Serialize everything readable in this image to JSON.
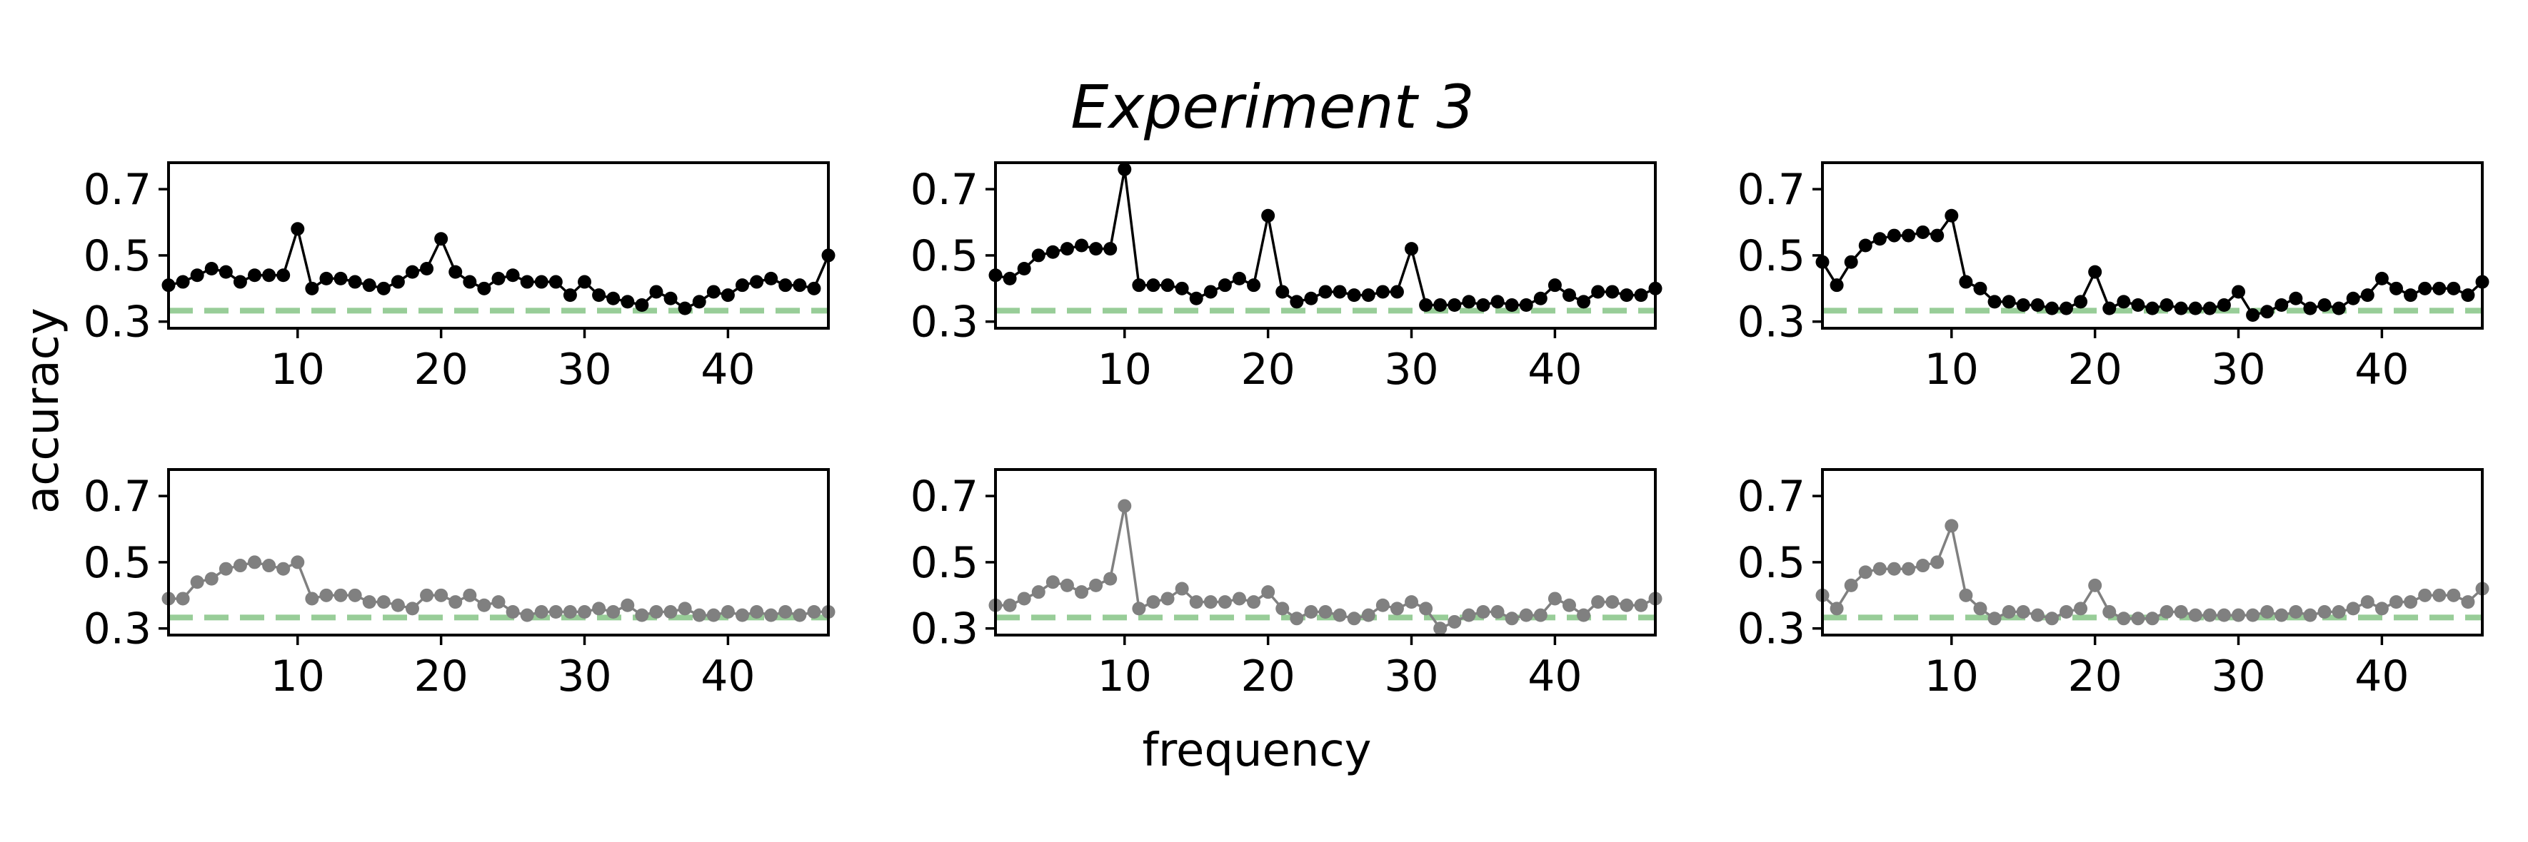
{
  "figure": {
    "title": "Experiment 3",
    "ylabel": "accuracy",
    "xlabel": "frequency"
  },
  "chart_data": [
    {
      "type": "line",
      "panel": "top-left",
      "color": "#000000",
      "baseline": 0.333,
      "baseline_color": "#98cd98",
      "xlim": [
        1,
        47
      ],
      "ylim": [
        0.28,
        0.78
      ],
      "xticks": [
        10,
        20,
        30,
        40
      ],
      "yticks": [
        0.3,
        0.5,
        0.7
      ],
      "x": [
        1,
        2,
        3,
        4,
        5,
        6,
        7,
        8,
        9,
        10,
        11,
        12,
        13,
        14,
        15,
        16,
        17,
        18,
        19,
        20,
        21,
        22,
        23,
        24,
        25,
        26,
        27,
        28,
        29,
        30,
        31,
        32,
        33,
        34,
        35,
        36,
        37,
        38,
        39,
        40,
        41,
        42,
        43,
        44,
        45,
        46,
        47
      ],
      "values": [
        0.41,
        0.42,
        0.44,
        0.46,
        0.45,
        0.42,
        0.44,
        0.44,
        0.44,
        0.58,
        0.4,
        0.43,
        0.43,
        0.42,
        0.41,
        0.4,
        0.42,
        0.45,
        0.46,
        0.55,
        0.45,
        0.42,
        0.4,
        0.43,
        0.44,
        0.42,
        0.42,
        0.42,
        0.38,
        0.42,
        0.38,
        0.37,
        0.36,
        0.35,
        0.39,
        0.37,
        0.34,
        0.36,
        0.39,
        0.38,
        0.41,
        0.42,
        0.43,
        0.41,
        0.41,
        0.4,
        0.5
      ]
    },
    {
      "type": "line",
      "panel": "top-middle",
      "color": "#000000",
      "baseline": 0.333,
      "baseline_color": "#98cd98",
      "xlim": [
        1,
        47
      ],
      "ylim": [
        0.28,
        0.78
      ],
      "xticks": [
        10,
        20,
        30,
        40
      ],
      "yticks": [
        0.3,
        0.5,
        0.7
      ],
      "x": [
        1,
        2,
        3,
        4,
        5,
        6,
        7,
        8,
        9,
        10,
        11,
        12,
        13,
        14,
        15,
        16,
        17,
        18,
        19,
        20,
        21,
        22,
        23,
        24,
        25,
        26,
        27,
        28,
        29,
        30,
        31,
        32,
        33,
        34,
        35,
        36,
        37,
        38,
        39,
        40,
        41,
        42,
        43,
        44,
        45,
        46,
        47
      ],
      "values": [
        0.44,
        0.43,
        0.46,
        0.5,
        0.51,
        0.52,
        0.53,
        0.52,
        0.52,
        0.76,
        0.41,
        0.41,
        0.41,
        0.4,
        0.37,
        0.39,
        0.41,
        0.43,
        0.41,
        0.62,
        0.39,
        0.36,
        0.37,
        0.39,
        0.39,
        0.38,
        0.38,
        0.39,
        0.39,
        0.52,
        0.35,
        0.35,
        0.35,
        0.36,
        0.35,
        0.36,
        0.35,
        0.35,
        0.37,
        0.41,
        0.38,
        0.36,
        0.39,
        0.39,
        0.38,
        0.38,
        0.4
      ]
    },
    {
      "type": "line",
      "panel": "top-right",
      "color": "#000000",
      "baseline": 0.333,
      "baseline_color": "#98cd98",
      "xlim": [
        1,
        47
      ],
      "ylim": [
        0.28,
        0.78
      ],
      "xticks": [
        10,
        20,
        30,
        40
      ],
      "yticks": [
        0.3,
        0.5,
        0.7
      ],
      "x": [
        1,
        2,
        3,
        4,
        5,
        6,
        7,
        8,
        9,
        10,
        11,
        12,
        13,
        14,
        15,
        16,
        17,
        18,
        19,
        20,
        21,
        22,
        23,
        24,
        25,
        26,
        27,
        28,
        29,
        30,
        31,
        32,
        33,
        34,
        35,
        36,
        37,
        38,
        39,
        40,
        41,
        42,
        43,
        44,
        45,
        46,
        47
      ],
      "values": [
        0.48,
        0.41,
        0.48,
        0.53,
        0.55,
        0.56,
        0.56,
        0.57,
        0.56,
        0.62,
        0.42,
        0.4,
        0.36,
        0.36,
        0.35,
        0.35,
        0.34,
        0.34,
        0.36,
        0.45,
        0.34,
        0.36,
        0.35,
        0.34,
        0.35,
        0.34,
        0.34,
        0.34,
        0.35,
        0.39,
        0.32,
        0.33,
        0.35,
        0.37,
        0.34,
        0.35,
        0.34,
        0.37,
        0.38,
        0.43,
        0.4,
        0.38,
        0.4,
        0.4,
        0.4,
        0.38,
        0.42
      ]
    },
    {
      "type": "line",
      "panel": "bottom-left",
      "color": "#808080",
      "baseline": 0.333,
      "baseline_color": "#98cd98",
      "xlim": [
        1,
        47
      ],
      "ylim": [
        0.28,
        0.78
      ],
      "xticks": [
        10,
        20,
        30,
        40
      ],
      "yticks": [
        0.3,
        0.5,
        0.7
      ],
      "x": [
        1,
        2,
        3,
        4,
        5,
        6,
        7,
        8,
        9,
        10,
        11,
        12,
        13,
        14,
        15,
        16,
        17,
        18,
        19,
        20,
        21,
        22,
        23,
        24,
        25,
        26,
        27,
        28,
        29,
        30,
        31,
        32,
        33,
        34,
        35,
        36,
        37,
        38,
        39,
        40,
        41,
        42,
        43,
        44,
        45,
        46,
        47
      ],
      "values": [
        0.39,
        0.39,
        0.44,
        0.45,
        0.48,
        0.49,
        0.5,
        0.49,
        0.48,
        0.5,
        0.39,
        0.4,
        0.4,
        0.4,
        0.38,
        0.38,
        0.37,
        0.36,
        0.4,
        0.4,
        0.38,
        0.4,
        0.37,
        0.38,
        0.35,
        0.34,
        0.35,
        0.35,
        0.35,
        0.35,
        0.36,
        0.35,
        0.37,
        0.34,
        0.35,
        0.35,
        0.36,
        0.34,
        0.34,
        0.35,
        0.34,
        0.35,
        0.34,
        0.35,
        0.34,
        0.35,
        0.35
      ]
    },
    {
      "type": "line",
      "panel": "bottom-middle",
      "color": "#808080",
      "baseline": 0.333,
      "baseline_color": "#98cd98",
      "xlim": [
        1,
        47
      ],
      "ylim": [
        0.28,
        0.78
      ],
      "xticks": [
        10,
        20,
        30,
        40
      ],
      "yticks": [
        0.3,
        0.5,
        0.7
      ],
      "x": [
        1,
        2,
        3,
        4,
        5,
        6,
        7,
        8,
        9,
        10,
        11,
        12,
        13,
        14,
        15,
        16,
        17,
        18,
        19,
        20,
        21,
        22,
        23,
        24,
        25,
        26,
        27,
        28,
        29,
        30,
        31,
        32,
        33,
        34,
        35,
        36,
        37,
        38,
        39,
        40,
        41,
        42,
        43,
        44,
        45,
        46,
        47
      ],
      "values": [
        0.37,
        0.37,
        0.39,
        0.41,
        0.44,
        0.43,
        0.41,
        0.43,
        0.45,
        0.67,
        0.36,
        0.38,
        0.39,
        0.42,
        0.38,
        0.38,
        0.38,
        0.39,
        0.38,
        0.41,
        0.36,
        0.33,
        0.35,
        0.35,
        0.34,
        0.33,
        0.34,
        0.37,
        0.36,
        0.38,
        0.36,
        0.3,
        0.32,
        0.34,
        0.35,
        0.35,
        0.33,
        0.34,
        0.34,
        0.39,
        0.37,
        0.34,
        0.38,
        0.38,
        0.37,
        0.37,
        0.39
      ]
    },
    {
      "type": "line",
      "panel": "bottom-right",
      "color": "#808080",
      "baseline": 0.333,
      "baseline_color": "#98cd98",
      "xlim": [
        1,
        47
      ],
      "ylim": [
        0.28,
        0.78
      ],
      "xticks": [
        10,
        20,
        30,
        40
      ],
      "yticks": [
        0.3,
        0.5,
        0.7
      ],
      "x": [
        1,
        2,
        3,
        4,
        5,
        6,
        7,
        8,
        9,
        10,
        11,
        12,
        13,
        14,
        15,
        16,
        17,
        18,
        19,
        20,
        21,
        22,
        23,
        24,
        25,
        26,
        27,
        28,
        29,
        30,
        31,
        32,
        33,
        34,
        35,
        36,
        37,
        38,
        39,
        40,
        41,
        42,
        43,
        44,
        45,
        46,
        47
      ],
      "values": [
        0.4,
        0.36,
        0.43,
        0.47,
        0.48,
        0.48,
        0.48,
        0.49,
        0.5,
        0.61,
        0.4,
        0.36,
        0.33,
        0.35,
        0.35,
        0.34,
        0.33,
        0.35,
        0.36,
        0.43,
        0.35,
        0.33,
        0.33,
        0.33,
        0.35,
        0.35,
        0.34,
        0.34,
        0.34,
        0.34,
        0.34,
        0.35,
        0.34,
        0.35,
        0.34,
        0.35,
        0.35,
        0.36,
        0.38,
        0.36,
        0.38,
        0.38,
        0.4,
        0.4,
        0.4,
        0.38,
        0.42
      ]
    }
  ]
}
